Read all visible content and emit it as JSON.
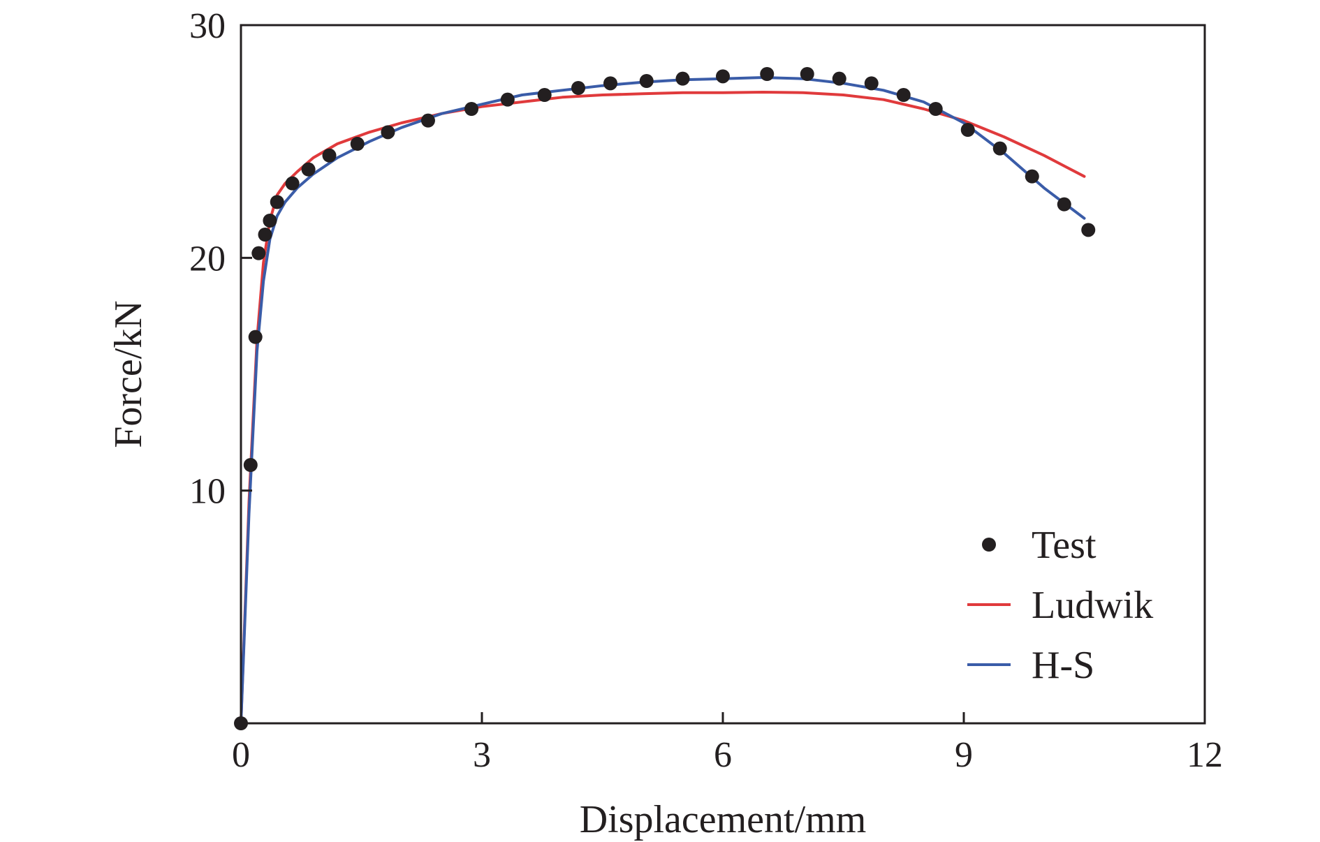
{
  "chart_data": {
    "type": "line",
    "title": "",
    "xlabel": "Displacement/mm",
    "ylabel": "Force/kN",
    "xlim": [
      0,
      12
    ],
    "ylim": [
      0,
      30
    ],
    "xticks": [
      0,
      3,
      6,
      9,
      12
    ],
    "yticks": [
      10,
      20,
      30
    ],
    "x_tick_labels": [
      "0",
      "3",
      "6",
      "9",
      "12"
    ],
    "y_tick_labels": [
      "10",
      "20",
      "30"
    ],
    "grid": false,
    "legend_position": "bottom-right",
    "series": [
      {
        "name": "Test",
        "kind": "scatter",
        "color": "#231f20",
        "points": [
          [
            0,
            0
          ],
          [
            0.12,
            11.1
          ],
          [
            0.18,
            16.6
          ],
          [
            0.22,
            20.2
          ],
          [
            0.3,
            21.0
          ],
          [
            0.36,
            21.6
          ],
          [
            0.45,
            22.4
          ],
          [
            0.64,
            23.2
          ],
          [
            0.84,
            23.8
          ],
          [
            1.1,
            24.4
          ],
          [
            1.45,
            24.9
          ],
          [
            1.83,
            25.4
          ],
          [
            2.33,
            25.9
          ],
          [
            2.87,
            26.4
          ],
          [
            3.32,
            26.8
          ],
          [
            3.78,
            27.0
          ],
          [
            4.2,
            27.3
          ],
          [
            4.6,
            27.5
          ],
          [
            5.05,
            27.6
          ],
          [
            5.5,
            27.7
          ],
          [
            6.0,
            27.8
          ],
          [
            6.55,
            27.9
          ],
          [
            7.05,
            27.9
          ],
          [
            7.45,
            27.7
          ],
          [
            7.85,
            27.5
          ],
          [
            8.25,
            27.0
          ],
          [
            8.65,
            26.4
          ],
          [
            9.05,
            25.5
          ],
          [
            9.45,
            24.7
          ],
          [
            9.85,
            23.5
          ],
          [
            10.25,
            22.3
          ],
          [
            10.55,
            21.2
          ]
        ]
      },
      {
        "name": "Ludwik",
        "kind": "line",
        "color": "#e03a3c",
        "points": [
          [
            0,
            0
          ],
          [
            0.1,
            9.5
          ],
          [
            0.2,
            16.5
          ],
          [
            0.28,
            19.8
          ],
          [
            0.36,
            21.6
          ],
          [
            0.45,
            22.7
          ],
          [
            0.55,
            23.2
          ],
          [
            0.7,
            23.7
          ],
          [
            0.9,
            24.3
          ],
          [
            1.2,
            24.9
          ],
          [
            1.6,
            25.4
          ],
          [
            2.0,
            25.8
          ],
          [
            2.5,
            26.2
          ],
          [
            3.0,
            26.5
          ],
          [
            3.5,
            26.7
          ],
          [
            4.0,
            26.9
          ],
          [
            4.5,
            27.0
          ],
          [
            5.0,
            27.05
          ],
          [
            5.5,
            27.1
          ],
          [
            6.0,
            27.1
          ],
          [
            6.5,
            27.12
          ],
          [
            7.0,
            27.1
          ],
          [
            7.5,
            27.0
          ],
          [
            8.0,
            26.8
          ],
          [
            8.5,
            26.4
          ],
          [
            9.0,
            25.9
          ],
          [
            9.5,
            25.2
          ],
          [
            10.0,
            24.4
          ],
          [
            10.5,
            23.5
          ]
        ]
      },
      {
        "name": "H-S",
        "kind": "line",
        "color": "#3a5ca8",
        "points": [
          [
            0,
            0
          ],
          [
            0.1,
            9.0
          ],
          [
            0.2,
            16.0
          ],
          [
            0.28,
            19.0
          ],
          [
            0.36,
            20.8
          ],
          [
            0.45,
            21.8
          ],
          [
            0.55,
            22.4
          ],
          [
            0.7,
            23.0
          ],
          [
            0.9,
            23.6
          ],
          [
            1.2,
            24.3
          ],
          [
            1.6,
            25.0
          ],
          [
            2.0,
            25.6
          ],
          [
            2.5,
            26.2
          ],
          [
            3.0,
            26.6
          ],
          [
            3.5,
            27.0
          ],
          [
            4.0,
            27.2
          ],
          [
            4.5,
            27.4
          ],
          [
            5.0,
            27.55
          ],
          [
            5.5,
            27.65
          ],
          [
            6.0,
            27.7
          ],
          [
            6.5,
            27.75
          ],
          [
            7.0,
            27.7
          ],
          [
            7.5,
            27.5
          ],
          [
            8.0,
            27.2
          ],
          [
            8.5,
            26.7
          ],
          [
            9.0,
            25.8
          ],
          [
            9.5,
            24.5
          ],
          [
            10.0,
            23.0
          ],
          [
            10.5,
            21.7
          ]
        ]
      }
    ]
  }
}
